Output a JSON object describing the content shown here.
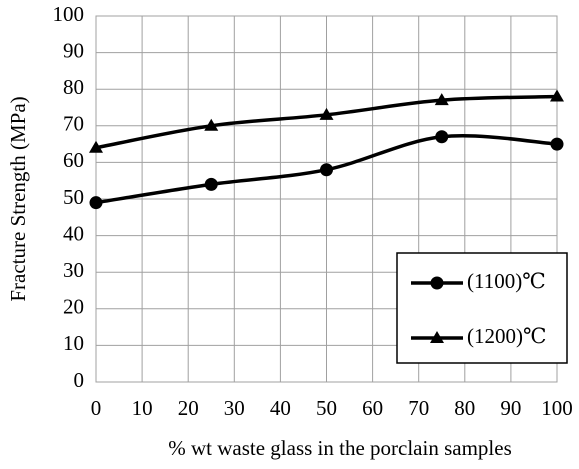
{
  "chart_data": {
    "type": "line",
    "xlabel": "% wt waste glass in the porclain samples",
    "ylabel": "Fracture Strength (MPa)",
    "x": [
      0,
      25,
      50,
      75,
      100
    ],
    "series": [
      {
        "name": "(1100)℃",
        "color": "#000000",
        "marker": "circle",
        "values": [
          49,
          54,
          58,
          67,
          65
        ]
      },
      {
        "name": "(1200)℃",
        "color": "#000000",
        "marker": "triangle",
        "values": [
          64,
          70,
          73,
          77,
          78
        ]
      }
    ],
    "xlim": [
      0,
      100
    ],
    "xticks": [
      0,
      10,
      20,
      30,
      40,
      50,
      60,
      70,
      80,
      90,
      100
    ],
    "ylim": [
      0,
      100
    ],
    "yticks": [
      0,
      10,
      20,
      30,
      40,
      50,
      60,
      70,
      80,
      90,
      100
    ],
    "grid": true,
    "smooth": true,
    "legend": "lower right"
  }
}
